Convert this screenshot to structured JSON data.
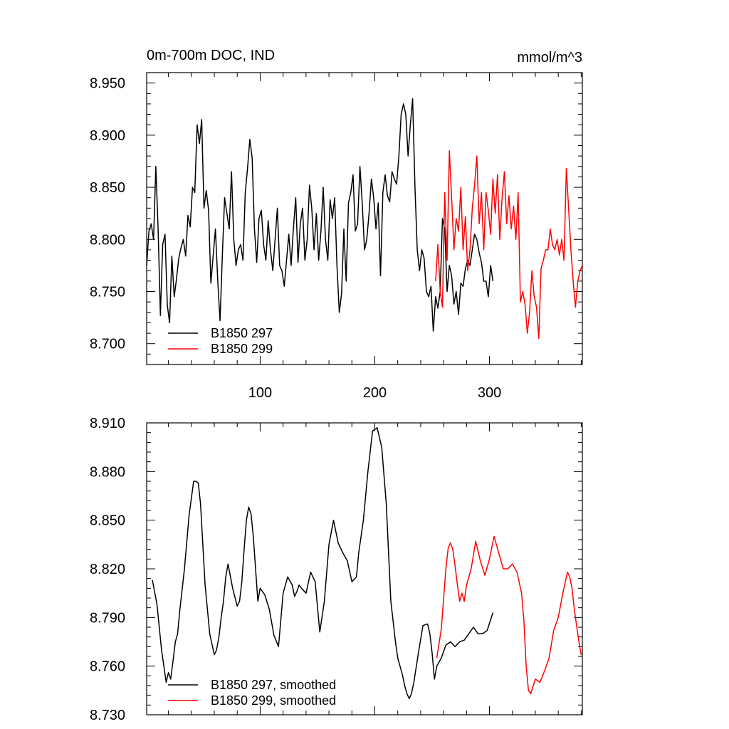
{
  "chart_data": [
    {
      "type": "line",
      "title": "0m-700m DOC, IND",
      "units": "mmol/m^3",
      "xlim": [
        1,
        381
      ],
      "ylim": [
        8.68,
        8.96
      ],
      "xticks": [
        100,
        200,
        300
      ],
      "xtick_labels": [
        "100",
        "200",
        "300"
      ],
      "yticks": [
        8.7,
        8.75,
        8.8,
        8.85,
        8.9,
        8.95
      ],
      "ytick_labels": [
        "8.700",
        "8.750",
        "8.800",
        "8.850",
        "8.900",
        "8.950"
      ],
      "legend_position": "bottom-left",
      "series": [
        {
          "name": "B1850 297",
          "color": "#000000",
          "x": [
            1,
            3,
            5,
            7,
            9,
            11,
            13,
            15,
            17,
            19,
            21,
            23,
            25,
            27,
            29,
            31,
            33,
            35,
            37,
            39,
            41,
            43,
            45,
            47,
            49,
            51,
            53,
            55,
            57,
            59,
            61,
            63,
            65,
            67,
            69,
            71,
            73,
            75,
            77,
            79,
            81,
            83,
            85,
            87,
            89,
            91,
            93,
            95,
            97,
            99,
            101,
            103,
            105,
            107,
            109,
            111,
            113,
            115,
            117,
            119,
            121,
            123,
            125,
            127,
            129,
            131,
            133,
            135,
            137,
            139,
            141,
            143,
            145,
            147,
            149,
            151,
            153,
            155,
            157,
            159,
            161,
            163,
            165,
            167,
            169,
            171,
            173,
            175,
            177,
            179,
            181,
            183,
            185,
            187,
            189,
            191,
            193,
            195,
            197,
            199,
            201,
            203,
            205,
            207,
            209,
            211,
            213,
            215,
            217,
            219,
            221,
            223,
            225,
            227,
            229,
            231,
            233,
            235,
            237,
            239,
            241,
            243,
            245,
            247,
            249,
            251,
            253,
            255,
            257,
            259,
            261,
            263,
            265,
            267,
            269,
            271,
            273,
            275,
            277,
            279,
            281,
            283,
            285,
            287,
            289,
            291,
            293,
            295,
            297,
            299,
            301,
            303
          ],
          "y": [
            8.775,
            8.808,
            8.815,
            8.8,
            8.87,
            8.81,
            8.727,
            8.795,
            8.805,
            8.737,
            8.72,
            8.784,
            8.745,
            8.762,
            8.782,
            8.792,
            8.8,
            8.784,
            8.823,
            8.812,
            8.85,
            8.845,
            8.91,
            8.892,
            8.915,
            8.83,
            8.847,
            8.828,
            8.758,
            8.784,
            8.81,
            8.76,
            8.722,
            8.784,
            8.84,
            8.825,
            8.81,
            8.865,
            8.8,
            8.775,
            8.79,
            8.795,
            8.78,
            8.845,
            8.868,
            8.896,
            8.878,
            8.81,
            8.778,
            8.82,
            8.828,
            8.795,
            8.78,
            8.818,
            8.79,
            8.77,
            8.8,
            8.83,
            8.775,
            8.77,
            8.755,
            8.78,
            8.805,
            8.775,
            8.81,
            8.84,
            8.778,
            8.815,
            8.83,
            8.78,
            8.8,
            8.852,
            8.83,
            8.79,
            8.825,
            8.78,
            8.808,
            8.85,
            8.8,
            8.78,
            8.838,
            8.82,
            8.84,
            8.775,
            8.73,
            8.748,
            8.81,
            8.76,
            8.835,
            8.845,
            8.862,
            8.808,
            8.815,
            8.87,
            8.835,
            8.79,
            8.8,
            8.825,
            8.858,
            8.84,
            8.81,
            8.835,
            8.765,
            8.845,
            8.862,
            8.842,
            8.836,
            8.865,
            8.858,
            8.853,
            8.88,
            8.92,
            8.93,
            8.92,
            8.88,
            8.91,
            8.935,
            8.85,
            8.79,
            8.77,
            8.79,
            8.782,
            8.75,
            8.745,
            8.755,
            8.712,
            8.745,
            8.734,
            8.75,
            8.82,
            8.81,
            8.75,
            8.775,
            8.765,
            8.738,
            8.75,
            8.728,
            8.758,
            8.755,
            8.772,
            8.78,
            8.775,
            8.79,
            8.805,
            8.8,
            8.787,
            8.778,
            8.76,
            8.76,
            8.745,
            8.775,
            8.76
          ]
        },
        {
          "name": "B1850 299",
          "color": "#ff0000",
          "x": [
            253,
            255,
            257,
            259,
            261,
            263,
            265,
            267,
            269,
            271,
            273,
            275,
            277,
            279,
            281,
            283,
            285,
            287,
            289,
            291,
            293,
            295,
            297,
            299,
            301,
            303,
            305,
            307,
            309,
            311,
            313,
            315,
            317,
            319,
            321,
            323,
            325,
            327,
            329,
            331,
            333,
            335,
            337,
            339,
            341,
            343,
            345,
            347,
            349,
            351,
            353,
            355,
            357,
            359,
            361,
            363,
            365,
            367,
            369,
            371,
            373,
            375,
            377,
            379,
            381
          ],
          "y": [
            8.76,
            8.795,
            8.75,
            8.735,
            8.845,
            8.78,
            8.885,
            8.84,
            8.79,
            8.82,
            8.808,
            8.85,
            8.79,
            8.822,
            8.77,
            8.79,
            8.83,
            8.852,
            8.88,
            8.815,
            8.845,
            8.79,
            8.845,
            8.828,
            8.805,
            8.858,
            8.825,
            8.862,
            8.8,
            8.84,
            8.865,
            8.815,
            8.842,
            8.81,
            8.832,
            8.8,
            8.845,
            8.74,
            8.75,
            8.738,
            8.71,
            8.73,
            8.77,
            8.745,
            8.735,
            8.705,
            8.772,
            8.78,
            8.79,
            8.79,
            8.81,
            8.795,
            8.79,
            8.8,
            8.785,
            8.8,
            8.78,
            8.868,
            8.83,
            8.79,
            8.76,
            8.735,
            8.76,
            8.77,
            8.775
          ]
        }
      ]
    },
    {
      "type": "line",
      "xlim": [
        1,
        381
      ],
      "ylim": [
        8.73,
        8.91
      ],
      "yticks": [
        8.73,
        8.76,
        8.79,
        8.82,
        8.85,
        8.88,
        8.91
      ],
      "ytick_labels": [
        "8.730",
        "8.760",
        "8.790",
        "8.820",
        "8.850",
        "8.880",
        "8.910"
      ],
      "legend_position": "bottom-left",
      "series": [
        {
          "name": "B1850 297, smoothed",
          "color": "#000000",
          "x": [
            6,
            10,
            14,
            18,
            20,
            22,
            24,
            26,
            28,
            30,
            34,
            38,
            42,
            44,
            46,
            48,
            50,
            52,
            56,
            60,
            62,
            64,
            66,
            68,
            70,
            72,
            76,
            80,
            82,
            84,
            86,
            88,
            90,
            92,
            94,
            96,
            98,
            100,
            104,
            108,
            112,
            116,
            120,
            124,
            128,
            130,
            132,
            134,
            136,
            140,
            144,
            148,
            152,
            156,
            160,
            164,
            168,
            172,
            176,
            180,
            184,
            186,
            188,
            190,
            194,
            198,
            202,
            206,
            210,
            214,
            218,
            220,
            222,
            224,
            226,
            228,
            230,
            232,
            234,
            238,
            242,
            246,
            248,
            250,
            252,
            254,
            258,
            262,
            266,
            270,
            274,
            278,
            282,
            286,
            290,
            294,
            298,
            303
          ],
          "y": [
            8.813,
            8.798,
            8.77,
            8.75,
            8.756,
            8.752,
            8.763,
            8.775,
            8.78,
            8.795,
            8.82,
            8.853,
            8.874,
            8.874,
            8.873,
            8.86,
            8.835,
            8.81,
            8.78,
            8.767,
            8.77,
            8.778,
            8.79,
            8.8,
            8.815,
            8.823,
            8.808,
            8.797,
            8.8,
            8.812,
            8.832,
            8.85,
            8.858,
            8.854,
            8.84,
            8.82,
            8.8,
            8.808,
            8.804,
            8.795,
            8.779,
            8.772,
            8.805,
            8.815,
            8.81,
            8.803,
            8.806,
            8.81,
            8.808,
            8.805,
            8.818,
            8.812,
            8.781,
            8.8,
            8.835,
            8.85,
            8.836,
            8.83,
            8.825,
            8.812,
            8.815,
            8.83,
            8.84,
            8.85,
            8.88,
            8.905,
            8.907,
            8.895,
            8.86,
            8.8,
            8.775,
            8.765,
            8.76,
            8.755,
            8.748,
            8.743,
            8.74,
            8.743,
            8.75,
            8.768,
            8.785,
            8.786,
            8.78,
            8.768,
            8.752,
            8.76,
            8.765,
            8.773,
            8.775,
            8.772,
            8.775,
            8.776,
            8.78,
            8.784,
            8.78,
            8.78,
            8.782,
            8.793
          ]
        },
        {
          "name": "B1850 299, smoothed",
          "color": "#ff0000",
          "x": [
            254,
            258,
            262,
            264,
            266,
            268,
            270,
            272,
            274,
            276,
            278,
            280,
            282,
            284,
            288,
            292,
            296,
            300,
            304,
            308,
            312,
            316,
            320,
            324,
            328,
            330,
            332,
            334,
            336,
            340,
            344,
            348,
            352,
            356,
            360,
            364,
            368,
            370,
            372,
            374,
            376,
            378,
            380
          ],
          "y": [
            8.765,
            8.783,
            8.82,
            8.833,
            8.836,
            8.832,
            8.822,
            8.81,
            8.8,
            8.805,
            8.8,
            8.81,
            8.815,
            8.82,
            8.837,
            8.825,
            8.816,
            8.826,
            8.84,
            8.83,
            8.82,
            8.82,
            8.823,
            8.818,
            8.805,
            8.788,
            8.76,
            8.745,
            8.743,
            8.752,
            8.75,
            8.757,
            8.765,
            8.782,
            8.79,
            8.805,
            8.818,
            8.815,
            8.808,
            8.795,
            8.785,
            8.775,
            8.767
          ]
        }
      ]
    }
  ]
}
